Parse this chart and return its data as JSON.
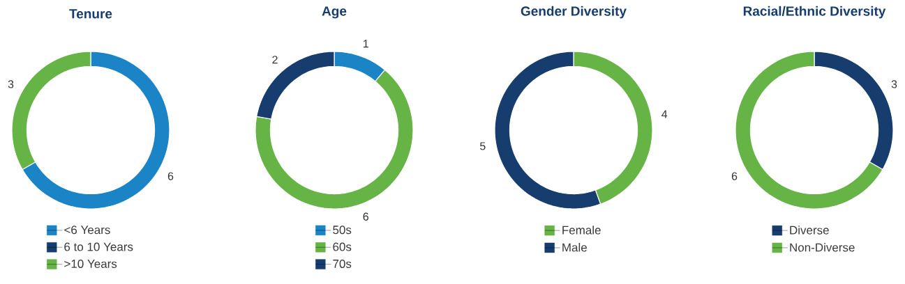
{
  "chart_data": [
    {
      "type": "donut",
      "title": "Tenure",
      "categories": [
        "<6 Years",
        "6 to 10 Years",
        ">10 Years"
      ],
      "values": [
        6,
        0,
        3
      ],
      "colors": [
        "#1a84c7",
        "#173c6e",
        "#65b445"
      ],
      "value_labels": [
        "6",
        null,
        "3"
      ],
      "legend": "bottom"
    },
    {
      "type": "donut",
      "title": "Age",
      "categories": [
        "50s",
        "60s",
        "70s"
      ],
      "values": [
        1,
        6,
        2
      ],
      "colors": [
        "#1a84c7",
        "#65b445",
        "#173c6e"
      ],
      "data_labels": true,
      "legend": "bottom"
    },
    {
      "type": "donut",
      "title": "Gender Diversity",
      "categories": [
        "Female",
        "Male"
      ],
      "values": [
        4,
        5
      ],
      "colors": [
        "#65b445",
        "#173c6e"
      ],
      "data_labels": true,
      "legend": "bottom"
    },
    {
      "type": "donut",
      "title": "Racial/Ethnic Diversity",
      "categories": [
        "Diverse",
        "Non-Diverse"
      ],
      "values": [
        3,
        6
      ],
      "colors": [
        "#173c6e",
        "#65b445"
      ],
      "data_labels": true,
      "legend": "bottom"
    }
  ]
}
